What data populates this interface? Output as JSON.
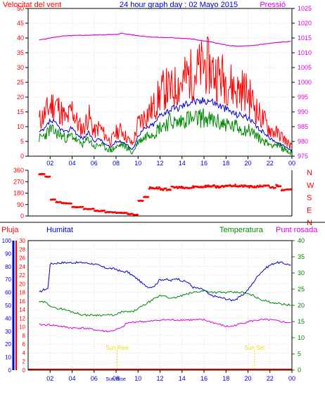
{
  "header": {
    "wind_label": "Velocitat del vent",
    "title": "24 hour graph day : 02 Mayo 2015",
    "pressure_label": "Pressió"
  },
  "colors": {
    "background": "#ffffff",
    "frame": "#000000",
    "grid": "#dddddd",
    "wind_gust": "#ff0000",
    "wind_avg": "#0000cc",
    "wind_speed": "#008800",
    "pressure": "#dd00dd",
    "direction": "#ff0000",
    "humidity": "#0000cc",
    "temperature": "#008800",
    "dewpoint": "#dd00dd",
    "rain": "#ff0000",
    "sun_marker": "#eedd00",
    "left_axis_red": "#ff0000",
    "left_axis_blue": "#0000cc",
    "right_axis_green": "#008800",
    "right_axis_magenta": "#dd00dd"
  },
  "chart_data": [
    {
      "type": "line",
      "panel": "wind-pressure",
      "x_ticks": [
        "02",
        "04",
        "06",
        "08",
        "10",
        "12",
        "14",
        "16",
        "18",
        "20",
        "22",
        "00"
      ],
      "x_tick_hours": [
        1,
        3,
        5,
        7,
        9,
        11,
        13,
        15,
        17,
        19,
        21,
        23
      ],
      "left_axis": {
        "label": "Velocitat del vent",
        "ticks": [
          "0",
          "5",
          "10",
          "15",
          "20",
          "25",
          "30",
          "35",
          "40",
          "45",
          "50"
        ],
        "range": [
          0,
          50
        ]
      },
      "right_axis": {
        "label": "Pressió",
        "ticks": [
          "975",
          "980",
          "985",
          "990",
          "995",
          "1000",
          "1005",
          "1010",
          "1015",
          "1020",
          "1025"
        ],
        "range": [
          975,
          1025
        ]
      },
      "series": [
        {
          "role": "wind_gust",
          "x": [
            0,
            0.5,
            1,
            1.5,
            2,
            2.5,
            3,
            3.5,
            4,
            4.5,
            5,
            5.5,
            6,
            6.5,
            7,
            7.5,
            8,
            8.5,
            9,
            9.5,
            10,
            10.5,
            11,
            11.5,
            12,
            12.5,
            13,
            13.5,
            14,
            14.5,
            15,
            15.5,
            16,
            16.5,
            17,
            17.5,
            18,
            18.5,
            19,
            19.5,
            20,
            20.5,
            21,
            21.5,
            22,
            22.5,
            23
          ],
          "y": [
            12,
            14,
            17,
            18,
            15,
            12,
            16,
            11,
            9,
            14,
            8,
            10,
            7,
            5,
            8,
            9,
            6,
            4,
            11,
            13,
            15,
            17,
            21,
            23,
            22,
            24,
            25,
            27,
            28,
            29,
            31,
            30,
            28,
            27,
            26,
            24,
            22,
            23,
            21,
            18,
            14,
            12,
            9,
            8,
            7,
            5,
            3
          ]
        },
        {
          "role": "wind_avg",
          "x": [
            0,
            0.5,
            1,
            1.5,
            2,
            2.5,
            3,
            3.5,
            4,
            4.5,
            5,
            5.5,
            6,
            6.5,
            7,
            7.5,
            8,
            8.5,
            9,
            9.5,
            10,
            10.5,
            11,
            11.5,
            12,
            12.5,
            13,
            13.5,
            14,
            14.5,
            15,
            15.5,
            16,
            16.5,
            17,
            17.5,
            18,
            18.5,
            19,
            19.5,
            20,
            20.5,
            21,
            21.5,
            22,
            22.5,
            23
          ],
          "y": [
            8,
            9,
            12,
            11,
            9,
            8,
            10,
            7,
            6,
            8,
            5,
            6,
            4,
            3,
            5,
            5,
            4,
            2,
            7,
            9,
            10,
            11,
            14,
            15,
            16,
            16,
            17,
            18,
            19,
            18,
            19,
            19,
            18,
            17,
            16,
            15,
            14,
            14,
            13,
            11,
            9,
            8,
            6,
            5,
            4,
            3,
            2
          ]
        },
        {
          "role": "wind_speed",
          "x": [
            0,
            0.5,
            1,
            1.5,
            2,
            2.5,
            3,
            3.5,
            4,
            4.5,
            5,
            5.5,
            6,
            6.5,
            7,
            7.5,
            8,
            8.5,
            9,
            9.5,
            10,
            10.5,
            11,
            11.5,
            12,
            12.5,
            13,
            13.5,
            14,
            14.5,
            15,
            15.5,
            16,
            16.5,
            17,
            17.5,
            18,
            18.5,
            19,
            19.5,
            20,
            20.5,
            21,
            21.5,
            22,
            22.5,
            23
          ],
          "y": [
            6,
            7,
            9,
            8,
            7,
            6,
            7,
            5,
            4,
            6,
            3,
            4,
            3,
            2,
            3,
            4,
            3,
            1,
            5,
            6,
            8,
            8,
            10,
            11,
            12,
            11,
            12,
            13,
            12,
            13,
            13,
            12,
            12,
            11,
            11,
            10,
            10,
            9,
            9,
            8,
            6,
            5,
            4,
            4,
            3,
            2,
            1
          ]
        },
        {
          "role": "pressure",
          "axis": "right",
          "x": [
            0,
            1,
            2,
            3,
            4,
            5,
            6,
            7,
            7.5,
            8,
            9,
            10,
            11,
            12,
            13,
            14,
            15,
            16,
            17,
            18,
            19,
            20,
            21,
            22,
            23
          ],
          "y": [
            1014.3,
            1015,
            1015.6,
            1015.8,
            1015.9,
            1016,
            1016.1,
            1016.2,
            1016.6,
            1016.3,
            1015.8,
            1015.4,
            1015.2,
            1015.1,
            1014.9,
            1014.6,
            1014,
            1013.4,
            1012.6,
            1012.2,
            1012.3,
            1012.7,
            1013.2,
            1013.6,
            1013.8
          ]
        }
      ]
    },
    {
      "type": "scatter",
      "panel": "wind-direction",
      "y_ticks": [
        "360",
        "270",
        "180",
        "90",
        "0"
      ],
      "y_range": [
        0,
        360
      ],
      "compass_labels": [
        "N",
        "W",
        "S",
        "E",
        "N"
      ],
      "series": [
        {
          "role": "direction",
          "x": [
            0,
            0.5,
            1,
            1.5,
            2,
            3,
            4,
            5,
            6,
            7,
            8,
            8.5,
            9,
            9.5,
            10,
            11,
            12,
            13,
            14,
            15,
            16,
            17,
            18,
            19,
            20,
            21,
            21.5,
            22,
            22.5,
            23
          ],
          "y": [
            330,
            310,
            130,
            110,
            100,
            70,
            55,
            40,
            30,
            25,
            15,
            10,
            120,
            150,
            220,
            210,
            225,
            220,
            230,
            235,
            230,
            240,
            235,
            230,
            235,
            225,
            240,
            200,
            215,
            230
          ]
        }
      ]
    },
    {
      "type": "line",
      "panel": "humidity-temperature",
      "x_ticks": [
        "02",
        "04",
        "06",
        "08",
        "10",
        "12",
        "14",
        "16",
        "18",
        "20",
        "22",
        "00"
      ],
      "x_tick_hours": [
        1,
        3,
        5,
        7,
        9,
        11,
        13,
        15,
        17,
        19,
        21,
        23
      ],
      "legend": {
        "rain": "Pluja",
        "humidity": "Humitat",
        "temperature": "Temperatura",
        "dewpoint": "Punt rosada"
      },
      "rain_axis": {
        "ticks": [
          "0",
          "2",
          "4",
          "6",
          "8",
          "10",
          "12",
          "14",
          "16",
          "18",
          "20",
          "22",
          "24",
          "26",
          "28",
          "30"
        ],
        "range": [
          0,
          30
        ]
      },
      "humidity_axis": {
        "ticks": [
          "0",
          "10",
          "20",
          "30",
          "40",
          "50",
          "60",
          "70",
          "80",
          "90",
          "100"
        ],
        "range": [
          0,
          100
        ]
      },
      "temperature_axis": {
        "ticks": [
          "0",
          "5",
          "10",
          "15",
          "20",
          "25",
          "30",
          "35",
          "40"
        ],
        "range": [
          0,
          40
        ]
      },
      "annotations": [
        {
          "label": "Sun Rise",
          "hour": 7.1
        },
        {
          "label": "Sun Set",
          "hour": 19.6
        }
      ],
      "x_extra_labels": [
        "Sun Rise",
        "Sun Set"
      ],
      "series": [
        {
          "role": "humidity",
          "x": [
            0,
            0.4,
            0.8,
            1,
            2,
            3,
            4,
            5,
            6,
            7,
            7.5,
            8,
            9,
            9.5,
            10,
            10.5,
            11,
            11.5,
            12,
            12.5,
            13,
            13.5,
            14,
            15,
            15.5,
            16,
            16.5,
            17,
            17.5,
            18,
            18.5,
            19,
            19.5,
            20,
            20.5,
            21,
            21.5,
            22,
            22.5,
            23
          ],
          "y": [
            60,
            62,
            63,
            82,
            83,
            83,
            83,
            82,
            79,
            78,
            76,
            76,
            70,
            66,
            64,
            65,
            70,
            70,
            69,
            71,
            69,
            68,
            64,
            62,
            58,
            57,
            56,
            55,
            54,
            55,
            58,
            62,
            68,
            74,
            78,
            81,
            83,
            83,
            82,
            81
          ]
        },
        {
          "role": "temperature",
          "x": [
            0,
            0.5,
            1,
            1.5,
            2,
            3,
            4,
            5,
            6,
            7,
            7.5,
            8,
            8.5,
            9,
            9.5,
            10,
            10.5,
            11,
            11.5,
            12,
            13,
            14,
            15,
            16,
            16.5,
            17,
            17.5,
            18,
            18.5,
            19,
            19.5,
            20,
            21,
            22,
            23
          ],
          "y": [
            21,
            21,
            20,
            19,
            19,
            18,
            17,
            17,
            17,
            17,
            18,
            18,
            18,
            19,
            20,
            21,
            22,
            23,
            23,
            22,
            23,
            24,
            24.5,
            24,
            24,
            24,
            24,
            24,
            24,
            23.5,
            23,
            22,
            21,
            20.5,
            20
          ]
        },
        {
          "role": "dewpoint",
          "axis": "temperature",
          "x": [
            0,
            0.5,
            1,
            2,
            3,
            4,
            5,
            6,
            6.5,
            7,
            7.5,
            8,
            9,
            10,
            11,
            12,
            13,
            14,
            15,
            15.5,
            16,
            16.5,
            17,
            17.5,
            18,
            18.5,
            19,
            20,
            21,
            22,
            23
          ],
          "y": [
            14,
            14,
            14,
            13.5,
            13,
            13,
            12.5,
            12,
            12,
            12.5,
            13,
            14.5,
            15,
            15,
            15.5,
            15.5,
            15.5,
            15.5,
            15.5,
            15,
            14.5,
            14,
            13.5,
            13.5,
            14,
            14.5,
            15,
            15.5,
            15.5,
            15,
            14.5
          ]
        },
        {
          "role": "rain",
          "axis": "rain",
          "x": [
            0,
            23
          ],
          "y": [
            0,
            0
          ]
        }
      ]
    }
  ]
}
